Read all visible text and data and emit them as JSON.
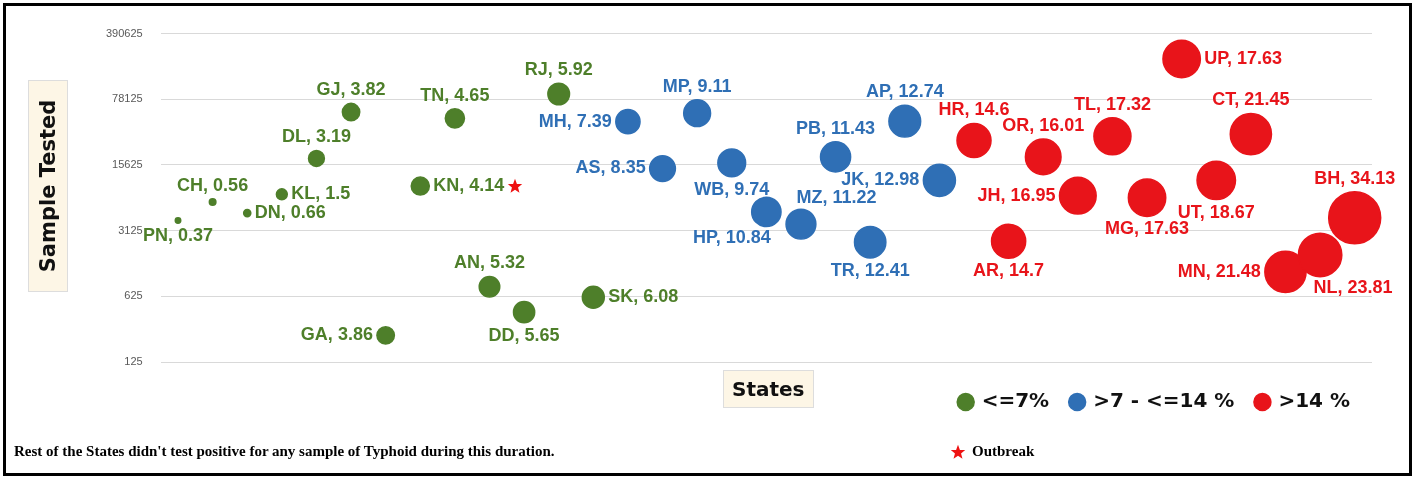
{
  "chart_data": {
    "type": "bubble",
    "xlabel": "States",
    "ylabel": "Sample Tested",
    "categories": [
      null,
      null,
      null,
      null,
      null,
      null,
      null,
      null,
      null,
      null,
      null,
      null,
      null,
      null,
      null,
      null,
      null,
      null,
      null,
      null,
      null,
      null,
      null,
      null,
      null,
      null,
      null,
      null,
      null,
      null,
      null,
      null,
      null,
      null,
      null
    ],
    "log": "y",
    "ylim": [
      125,
      390625
    ],
    "yticks": [
      125,
      625,
      3125,
      15625,
      78125,
      390625
    ],
    "grid": "y",
    "legend": "bottom right",
    "tick_labels": "y",
    "series": [
      {
        "name": "<=7%",
        "color": "#4e7f2a",
        "values": [
          4000,
          6300,
          4800,
          7600,
          18300,
          57000,
          240,
          9300,
          48900,
          790,
          424,
          88800,
          610,
          null,
          null,
          null,
          null,
          null,
          null,
          null,
          null,
          null,
          null,
          null,
          null,
          null,
          null,
          null,
          null,
          null,
          null,
          null,
          null,
          null,
          null
        ],
        "sizes": [
          0.011,
          0.016,
          0.019,
          0.044,
          0.093,
          0.112,
          0.113,
          0.121,
          0.136,
          0.156,
          0.166,
          0.173,
          0.178,
          null,
          null,
          null,
          null,
          null,
          null,
          null,
          null,
          null,
          null,
          null,
          null,
          null,
          null,
          null,
          null,
          null,
          null,
          null,
          null,
          null,
          null
        ]
      },
      {
        "name": ">7 - <=14 %",
        "color": "#2f6fb5",
        "values": [
          null,
          null,
          null,
          null,
          null,
          null,
          null,
          null,
          null,
          null,
          null,
          null,
          null,
          45000,
          14300,
          55500,
          16400,
          4940,
          3660,
          19000,
          2350,
          45600,
          10700,
          null,
          null,
          null,
          null,
          null,
          null,
          null,
          null,
          null,
          null,
          null,
          null
        ],
        "sizes": [
          null,
          null,
          null,
          null,
          null,
          null,
          null,
          null,
          null,
          null,
          null,
          null,
          null,
          0.217,
          0.245,
          0.267,
          0.285,
          0.318,
          0.329,
          0.335,
          0.364,
          0.373,
          0.38,
          null,
          null,
          null,
          null,
          null,
          null,
          null,
          null,
          null,
          null,
          null,
          null
        ]
      },
      {
        "name": ">14 %",
        "color": "#e8141a",
        "values": [
          null,
          null,
          null,
          null,
          null,
          null,
          null,
          null,
          null,
          null,
          null,
          null,
          null,
          null,
          null,
          null,
          null,
          null,
          null,
          null,
          null,
          null,
          null,
          28400,
          2410,
          19000,
          7350,
          31500,
          6990,
          209000,
          10700,
          33200,
          1135,
          1720,
          4280
        ],
        "sizes": [
          null,
          null,
          null,
          null,
          null,
          null,
          null,
          null,
          null,
          null,
          null,
          null,
          null,
          null,
          null,
          null,
          null,
          null,
          null,
          null,
          null,
          null,
          null,
          0.428,
          0.431,
          0.469,
          0.497,
          0.507,
          0.517,
          0.517,
          0.547,
          0.628,
          0.629,
          0.698,
          1
        ]
      }
    ],
    "annotations": [
      "Rest of the States didn't test positive for any sample of Typhoid  during this duration.",
      "Outbreak",
      "PN, 0.37",
      "CH, 0.56",
      "DN, 0.66",
      "KL, 1.5",
      "DL, 3.19",
      "GJ, 3.82",
      "GA, 3.86",
      "KN, 4.14",
      "TN, 4.65",
      "AN, 5.32",
      "DD, 5.65",
      "RJ, 5.92",
      "SK, 6.08",
      "MH, 7.39",
      "AS, 8.35",
      "MP, 9.11",
      "WB, 9.74",
      "HP, 10.84",
      "MZ, 11.22",
      "PB, 11.43",
      "TR, 12.41",
      "AP, 12.74",
      "JK, 12.98",
      "HR, 14.6",
      "AR, 14.7",
      "OR, 16.01",
      "JH, 16.95",
      "TL, 17.32",
      "MG, 17.63",
      "UP, 17.63",
      "UT, 18.67",
      "CT, 21.45",
      "MN, 21.48",
      "NL, 23.81",
      "BH, 34.13"
    ]
  }
}
